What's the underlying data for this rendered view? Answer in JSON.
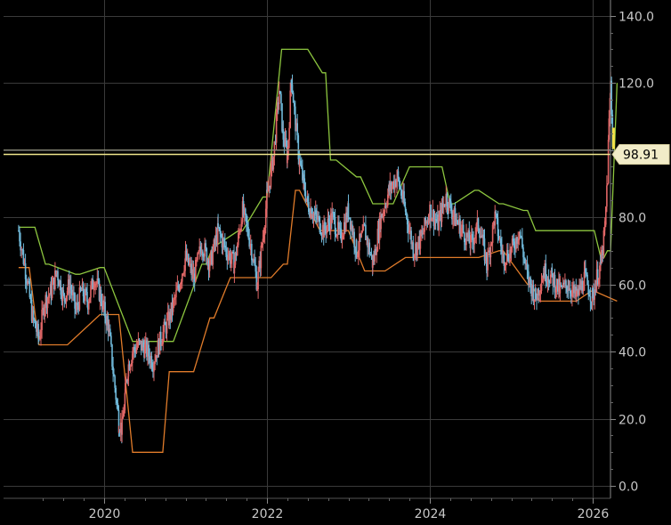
{
  "chart_data": {
    "type": "line",
    "title": "",
    "xlabel": "",
    "ylabel": "",
    "x_ticks": [
      "2020",
      "2022",
      "2024",
      "2026"
    ],
    "y_ticks": [
      "0.0",
      "20.0",
      "40.0",
      "60.0",
      "80.0",
      "100.0",
      "120.0",
      "140.0"
    ],
    "xlim": [
      2018.95,
      2026.3
    ],
    "ylim": [
      -0.5,
      143
    ],
    "grid": true,
    "last_value_label": "98.91",
    "last_value": 98.91,
    "colors": {
      "price_up": "#e06666",
      "price_down": "#6fb8d9",
      "upper_channel": "#8dc63f",
      "lower_channel": "#e07b2a",
      "last_line": "#f0e68c",
      "grid": "#3a3a3a"
    },
    "series": [
      {
        "type": "price",
        "x": [
          2018.95,
          2019.05,
          2019.12,
          2019.2,
          2019.27,
          2019.35,
          2019.42,
          2019.5,
          2019.58,
          2019.65,
          2019.72,
          2019.8,
          2019.88,
          2019.95,
          2020.0,
          2020.05,
          2020.12,
          2020.18,
          2020.22,
          2020.26,
          2020.3,
          2020.35,
          2020.42,
          2020.5,
          2020.6,
          2020.7,
          2020.8,
          2020.9,
          2021.0,
          2021.1,
          2021.2,
          2021.3,
          2021.4,
          2021.5,
          2021.6,
          2021.7,
          2021.8,
          2021.88,
          2021.95,
          2022.0,
          2022.08,
          2022.15,
          2022.2,
          2022.25,
          2022.3,
          2022.35,
          2022.4,
          2022.45,
          2022.5,
          2022.55,
          2022.6,
          2022.7,
          2022.8,
          2022.9,
          2023.0,
          2023.1,
          2023.2,
          2023.3,
          2023.4,
          2023.5,
          2023.6,
          2023.7,
          2023.8,
          2023.9,
          2024.0,
          2024.1,
          2024.2,
          2024.3,
          2024.4,
          2024.5,
          2024.6,
          2024.7,
          2024.8,
          2024.9,
          2025.0,
          2025.1,
          2025.2,
          2025.3,
          2025.4,
          2025.5,
          2025.6,
          2025.7,
          2025.8,
          2025.9,
          2026.0,
          2026.05,
          2026.1,
          2026.15,
          2026.18,
          2026.2,
          2026.22,
          2026.25
        ],
        "y": [
          76,
          62,
          50,
          44,
          55,
          58,
          64,
          56,
          60,
          52,
          58,
          55,
          62,
          57,
          52,
          48,
          32,
          19,
          17,
          28,
          36,
          40,
          42,
          41,
          37,
          44,
          50,
          58,
          68,
          62,
          72,
          66,
          76,
          70,
          66,
          82,
          72,
          60,
          74,
          86,
          98,
          118,
          104,
          98,
          122,
          108,
          96,
          90,
          84,
          82,
          80,
          76,
          80,
          74,
          82,
          70,
          76,
          66,
          80,
          88,
          92,
          82,
          70,
          74,
          82,
          78,
          86,
          80,
          76,
          72,
          78,
          66,
          80,
          68,
          70,
          76,
          62,
          56,
          64,
          62,
          58,
          60,
          56,
          62,
          56,
          62,
          66,
          76,
          92,
          108,
          120,
          98.91
        ]
      },
      {
        "type": "upper_channel",
        "x": [
          2018.95,
          2019.15,
          2019.28,
          2019.32,
          2019.65,
          2019.7,
          2019.95,
          2020.0,
          2020.35,
          2020.42,
          2020.78,
          2020.85,
          2021.2,
          2021.25,
          2021.35,
          2021.4,
          2021.65,
          2021.7,
          2021.95,
          2022.0,
          2022.18,
          2022.2,
          2022.45,
          2022.5,
          2022.68,
          2022.72,
          2022.78,
          2022.85,
          2023.1,
          2023.15,
          2023.3,
          2023.35,
          2023.5,
          2023.55,
          2023.75,
          2023.8,
          2024.1,
          2024.15,
          2024.25,
          2024.3,
          2024.55,
          2024.6,
          2024.85,
          2024.9,
          2025.15,
          2025.2,
          2025.3,
          2025.35,
          2025.5,
          2025.55,
          2025.98,
          2026.02,
          2026.1,
          2026.14,
          2026.18,
          2026.22,
          2026.3
        ],
        "y": [
          77,
          77,
          66,
          66,
          63,
          63,
          65,
          65,
          43,
          43,
          43,
          43,
          66,
          66,
          72,
          72,
          76,
          76,
          86,
          86,
          130,
          130,
          130,
          130,
          123,
          123,
          97,
          97,
          92,
          92,
          84,
          84,
          84,
          84,
          95,
          95,
          95,
          95,
          84,
          84,
          88,
          88,
          84,
          84,
          82,
          82,
          76,
          76,
          76,
          76,
          76,
          76,
          68,
          68,
          70,
          70,
          120
        ],
        "name": ""
      },
      {
        "type": "lower_channel",
        "x": [
          2018.95,
          2019.08,
          2019.2,
          2019.25,
          2019.5,
          2019.55,
          2019.95,
          2020.0,
          2020.15,
          2020.18,
          2020.35,
          2020.4,
          2020.68,
          2020.72,
          2020.8,
          2020.85,
          2021.05,
          2021.1,
          2021.3,
          2021.35,
          2021.55,
          2021.6,
          2022.0,
          2022.05,
          2022.2,
          2022.25,
          2022.35,
          2022.4,
          2022.65,
          2022.7,
          2022.95,
          2023.0,
          2023.2,
          2023.25,
          2023.4,
          2023.45,
          2023.7,
          2023.75,
          2024.0,
          2024.05,
          2024.55,
          2024.6,
          2024.85,
          2024.9,
          2025.2,
          2025.25,
          2025.35,
          2025.4,
          2025.75,
          2025.8,
          2025.98,
          2026.02,
          2026.3
        ],
        "y": [
          65,
          65,
          42,
          42,
          42,
          42,
          51,
          51,
          51,
          51,
          10,
          10,
          10,
          10,
          34,
          34,
          34,
          34,
          50,
          50,
          62,
          62,
          62,
          62,
          66,
          66,
          88,
          88,
          76,
          76,
          76,
          76,
          64,
          64,
          64,
          64,
          68,
          68,
          68,
          68,
          68,
          68,
          70,
          70,
          60,
          60,
          55,
          55,
          55,
          55,
          58,
          58,
          55
        ],
        "name": ""
      }
    ]
  }
}
